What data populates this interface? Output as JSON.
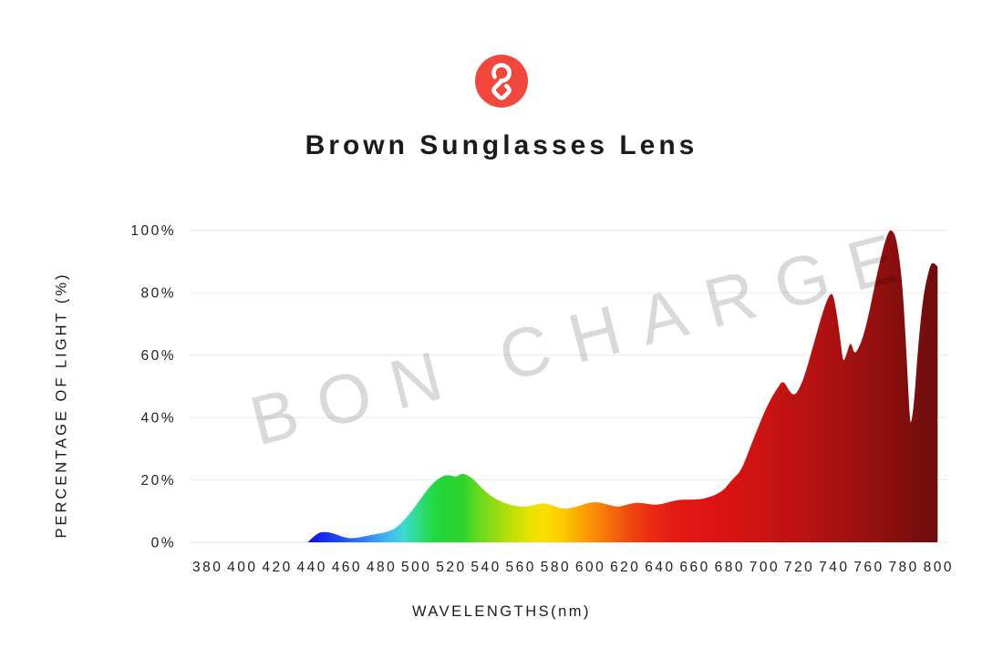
{
  "header": {
    "title": "Brown Sunglasses Lens",
    "logo": {
      "name": "bon-charge-logo",
      "circle_color": "#f1473d",
      "glyph_color": "#ffffff"
    }
  },
  "watermark_text": "BON CHARGE",
  "chart_data": {
    "type": "area",
    "title": "Brown Sunglasses Lens",
    "xlabel": "WAVELENGTHS(nm)",
    "ylabel": "PERCENTAGE OF LIGHT (%)",
    "xlim": [
      380,
      800
    ],
    "ylim": [
      0,
      100
    ],
    "grid": true,
    "gridline_color": "#eaeaea",
    "x_ticks": [
      {
        "value": 380,
        "label": "380"
      },
      {
        "value": 400,
        "label": "400"
      },
      {
        "value": 420,
        "label": "420"
      },
      {
        "value": 440,
        "label": "440"
      },
      {
        "value": 460,
        "label": "460"
      },
      {
        "value": 480,
        "label": "480"
      },
      {
        "value": 500,
        "label": "500"
      },
      {
        "value": 520,
        "label": "520"
      },
      {
        "value": 540,
        "label": "540"
      },
      {
        "value": 560,
        "label": "560"
      },
      {
        "value": 580,
        "label": "580"
      },
      {
        "value": 600,
        "label": "600"
      },
      {
        "value": 620,
        "label": "620"
      },
      {
        "value": 640,
        "label": "640"
      },
      {
        "value": 660,
        "label": "660"
      },
      {
        "value": 680,
        "label": "680"
      },
      {
        "value": 700,
        "label": "700"
      },
      {
        "value": 720,
        "label": "720"
      },
      {
        "value": 740,
        "label": "740"
      },
      {
        "value": 760,
        "label": "760"
      },
      {
        "value": 780,
        "label": "780"
      },
      {
        "value": 800,
        "label": "800"
      }
    ],
    "y_ticks": [
      {
        "value": 0,
        "label": "0%"
      },
      {
        "value": 20,
        "label": "20%"
      },
      {
        "value": 40,
        "label": "40%"
      },
      {
        "value": 60,
        "label": "60%"
      },
      {
        "value": 80,
        "label": "80%"
      },
      {
        "value": 100,
        "label": "100%"
      }
    ],
    "series": [
      {
        "name": "light-transmission-spectrum",
        "points": [
          [
            438,
            0
          ],
          [
            441,
            1.6
          ],
          [
            444,
            2.9
          ],
          [
            446,
            3.3
          ],
          [
            449,
            3.3
          ],
          [
            452,
            3.0
          ],
          [
            456,
            2.2
          ],
          [
            459,
            1.6
          ],
          [
            462,
            1.3
          ],
          [
            466,
            1.4
          ],
          [
            470,
            1.8
          ],
          [
            475,
            2.4
          ],
          [
            480,
            2.9
          ],
          [
            484,
            3.4
          ],
          [
            488,
            4.3
          ],
          [
            492,
            6.2
          ],
          [
            496,
            8.8
          ],
          [
            500,
            11.6
          ],
          [
            504,
            14.8
          ],
          [
            508,
            17.8
          ],
          [
            512,
            19.9
          ],
          [
            515,
            21.0
          ],
          [
            517,
            21.5
          ],
          [
            520,
            21.5
          ],
          [
            523,
            20.9
          ],
          [
            526,
            21.9
          ],
          [
            528,
            21.9
          ],
          [
            531,
            21.2
          ],
          [
            534,
            19.8
          ],
          [
            538,
            17.4
          ],
          [
            542,
            15.4
          ],
          [
            546,
            13.9
          ],
          [
            551,
            12.6
          ],
          [
            556,
            11.8
          ],
          [
            561,
            11.4
          ],
          [
            566,
            11.6
          ],
          [
            571,
            12.4
          ],
          [
            575,
            12.5
          ],
          [
            580,
            11.5
          ],
          [
            585,
            10.7
          ],
          [
            590,
            11.0
          ],
          [
            596,
            12.0
          ],
          [
            601,
            12.9
          ],
          [
            606,
            12.8
          ],
          [
            611,
            12.0
          ],
          [
            616,
            11.3
          ],
          [
            621,
            12.0
          ],
          [
            626,
            12.7
          ],
          [
            631,
            12.6
          ],
          [
            636,
            12.0
          ],
          [
            641,
            12.1
          ],
          [
            646,
            13.0
          ],
          [
            651,
            13.6
          ],
          [
            656,
            13.7
          ],
          [
            661,
            13.7
          ],
          [
            666,
            14.0
          ],
          [
            671,
            14.9
          ],
          [
            675,
            16.0
          ],
          [
            678,
            17.3
          ],
          [
            681,
            19.5
          ],
          [
            684,
            21.2
          ],
          [
            686,
            22.3
          ],
          [
            689,
            25.5
          ],
          [
            693,
            31.5
          ],
          [
            697,
            37.0
          ],
          [
            701,
            42.5
          ],
          [
            705,
            46.8
          ],
          [
            708,
            49.4
          ],
          [
            710,
            51.3
          ],
          [
            712,
            51.3
          ],
          [
            714,
            49.2
          ],
          [
            716,
            47.6
          ],
          [
            718,
            47.3
          ],
          [
            720,
            48.7
          ],
          [
            723,
            52.5
          ],
          [
            726,
            58.0
          ],
          [
            729,
            64.0
          ],
          [
            732,
            70.0
          ],
          [
            735,
            75.5
          ],
          [
            738,
            79.6
          ],
          [
            740,
            79.6
          ],
          [
            742,
            73.5
          ],
          [
            744,
            65.5
          ],
          [
            745.5,
            58.4
          ],
          [
            746.5,
            58.4
          ],
          [
            748,
            61.0
          ],
          [
            749.5,
            63.6
          ],
          [
            750.5,
            63.6
          ],
          [
            752,
            60.5
          ],
          [
            754,
            61.5
          ],
          [
            757,
            65.5
          ],
          [
            760,
            72.0
          ],
          [
            763,
            80.0
          ],
          [
            766,
            88.0
          ],
          [
            769,
            95.0
          ],
          [
            772,
            100
          ],
          [
            774,
            100
          ],
          [
            776,
            97.8
          ],
          [
            778,
            91.5
          ],
          [
            780,
            81.0
          ],
          [
            782,
            62.0
          ],
          [
            784,
            38.5
          ],
          [
            785,
            38.5
          ],
          [
            786.5,
            45.0
          ],
          [
            788,
            57.0
          ],
          [
            790,
            70.0
          ],
          [
            792,
            79.5
          ],
          [
            794,
            85.0
          ],
          [
            796,
            89.3
          ],
          [
            798,
            89.6
          ],
          [
            800,
            88.3
          ]
        ]
      }
    ],
    "spectral_gradient_stops": [
      [
        438,
        "#1512d6"
      ],
      [
        446,
        "#1527ee"
      ],
      [
        456,
        "#1d49f2"
      ],
      [
        468,
        "#2b76f4"
      ],
      [
        478,
        "#399ff3"
      ],
      [
        486,
        "#42bef1"
      ],
      [
        493,
        "#3cd8d2"
      ],
      [
        500,
        "#2edd96"
      ],
      [
        507,
        "#27da55"
      ],
      [
        515,
        "#23d436"
      ],
      [
        527,
        "#2cd32c"
      ],
      [
        536,
        "#66d91e"
      ],
      [
        546,
        "#95dc12"
      ],
      [
        556,
        "#c2e008"
      ],
      [
        566,
        "#e9e300"
      ],
      [
        575,
        "#fbdd00"
      ],
      [
        585,
        "#fec800"
      ],
      [
        595,
        "#fda502"
      ],
      [
        605,
        "#f98506"
      ],
      [
        615,
        "#f4620b"
      ],
      [
        625,
        "#ef4210"
      ],
      [
        636,
        "#ea2a13"
      ],
      [
        648,
        "#e51b15"
      ],
      [
        660,
        "#e11515"
      ],
      [
        680,
        "#d91313"
      ],
      [
        700,
        "#cc1313"
      ],
      [
        720,
        "#bc1212"
      ],
      [
        740,
        "#aa1111"
      ],
      [
        758,
        "#9a1010"
      ],
      [
        772,
        "#8c0f0f"
      ],
      [
        786,
        "#7b0e0e"
      ],
      [
        800,
        "#6e0d0d"
      ]
    ],
    "legend": null,
    "watermark": "BON CHARGE"
  }
}
